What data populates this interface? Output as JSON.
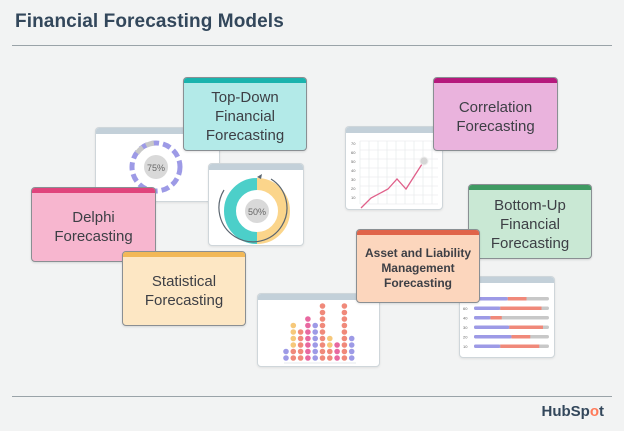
{
  "header": {
    "title": "Financial Forecasting Models"
  },
  "models": [
    {
      "id": "top-down",
      "label": "Top-Down Financial Forecasting",
      "bg": "#b3eae8",
      "bar": "#1ab3ad"
    },
    {
      "id": "correlation",
      "label": "Correlation Forecasting",
      "bg": "#eab3dd",
      "bar": "#b5197c"
    },
    {
      "id": "delphi",
      "label": "Delphi Forecasting",
      "bg": "#f7b6cf",
      "bar": "#e0447c"
    },
    {
      "id": "bottom-up",
      "label": "Bottom-Up Financial Forecasting",
      "bg": "#c9e8d4",
      "bar": "#3f9a62"
    },
    {
      "id": "statistical",
      "label": "Statistical Forecasting",
      "bg": "#fde7c4",
      "bar": "#f2b857"
    },
    {
      "id": "asset-liability",
      "label": "Asset and Liability Management Forecasting",
      "bg": "#fcd6bd",
      "bar": "#e0644a"
    }
  ],
  "widgets": {
    "dashed_donut": {
      "value": "75%"
    },
    "split_donut": {
      "value": "50%",
      "color_left": "#4ccfc9",
      "color_right": "#fbd58b"
    },
    "line_chart": {
      "y_ticks": [
        "70",
        "60",
        "50",
        "40",
        "30",
        "20",
        "10"
      ]
    },
    "bar_rows": {
      "labels": [
        "",
        "60",
        "40",
        "30",
        "20",
        "10"
      ]
    }
  },
  "footer": {
    "brand_prefix": "HubSp",
    "brand_accent": "o",
    "brand_suffix": "t"
  }
}
